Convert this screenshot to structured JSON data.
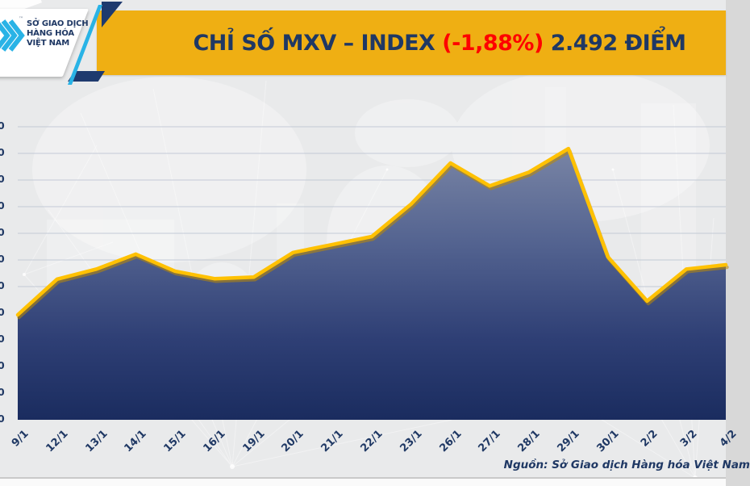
{
  "header": {
    "logo": {
      "lines": [
        "SỞ GIAO DỊCH",
        "HÀNG HÓA",
        "VIỆT NAM"
      ],
      "trademark": "™",
      "chevron_color": "#29B3E6",
      "text_color": "#1F3864"
    },
    "title": {
      "prefix": "CHỈ SỐ MXV – INDEX ",
      "change": "(-1,88%)",
      "suffix": " 2.492 ĐIỂM"
    },
    "banner_color": "#EFAF13",
    "title_color": "#1F3864",
    "change_color": "#FE0000"
  },
  "chart_data": {
    "type": "area",
    "title": "CHỈ SỐ MXV – INDEX (-1,88%) 2.492 ĐIỂM",
    "categories": [
      "9/1",
      "12/1",
      "13/1",
      "14/1",
      "15/1",
      "16/1",
      "19/1",
      "20/1",
      "21/1",
      "22/1",
      "23/1",
      "26/1",
      "27/1",
      "28/1",
      "29/1",
      "30/1",
      "2/2",
      "3/2",
      "4/2"
    ],
    "values": [
      2398,
      2465,
      2484,
      2512,
      2480,
      2466,
      2469,
      2515,
      2530,
      2545,
      2606,
      2683,
      2640,
      2666,
      2710,
      2507,
      2424,
      2484,
      2492
    ],
    "values_estimated": true,
    "last_value_label": "2.492",
    "change_percent": "-1,88%",
    "xlabel": "",
    "ylabel": "",
    "x_tick_rotation": -45,
    "grid": true,
    "legend": "none",
    "line_color": "#FFC103",
    "line_shadow_color": "#BD8B00",
    "fill_gradient": [
      "#7F8AA8",
      "#50608E",
      "#2B3C73",
      "#16285C"
    ],
    "grid_color": "#C3CAD6",
    "y_axis": {
      "labels_clipped": true,
      "visible_glyph": "0",
      "tick_count": 12,
      "gridline_count": 11
    }
  },
  "footer": {
    "source": "Nguồn: Sở Giao dịch Hàng hóa Việt Nam"
  }
}
